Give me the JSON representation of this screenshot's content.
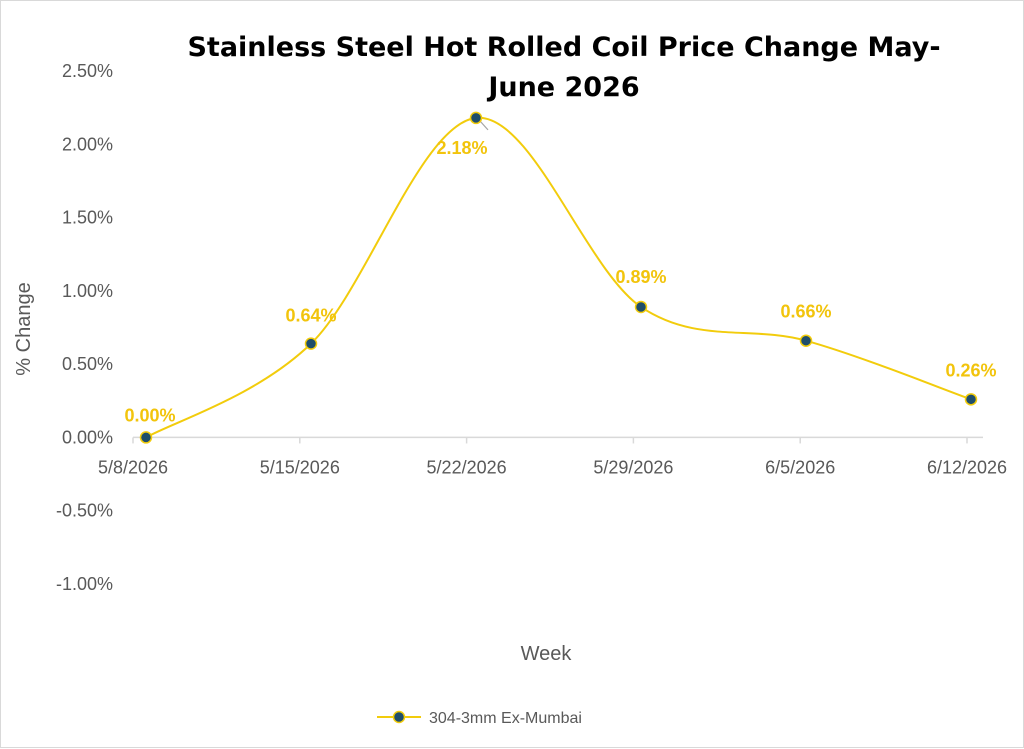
{
  "chart_data": {
    "type": "line",
    "title": "Stainless Steel Hot Rolled Coil Price Change May-June 2026",
    "title_lines": [
      "Stainless Steel Hot Rolled Coil Price Change May-",
      "June 2026"
    ],
    "xlabel": "Week",
    "ylabel": "% Change",
    "categories": [
      "5/8/2026",
      "5/15/2026",
      "5/22/2026",
      "5/29/2026",
      "6/5/2026",
      "6/12/2026"
    ],
    "series": [
      {
        "name": "304-3mm Ex-Mumbai",
        "values": [
          0.0,
          0.64,
          2.18,
          0.89,
          0.66,
          0.26
        ],
        "data_labels": [
          "0.00%",
          "0.64%",
          "2.18%",
          "0.89%",
          "0.66%",
          "0.26%"
        ],
        "line_color": "#f2cc0c",
        "marker_color": "#1f4e6b",
        "label_color": "#f2c40c",
        "smooth": true
      }
    ],
    "ylim": [
      -1.0,
      2.5
    ],
    "yticks": [
      2.5,
      2.0,
      1.5,
      1.0,
      0.5,
      0.0,
      -0.5,
      -1.0
    ],
    "ytick_labels": [
      "2.50%",
      "2.00%",
      "1.50%",
      "1.00%",
      "0.50%",
      "0.00%",
      "-0.50%",
      "-1.00%"
    ],
    "grid": false,
    "legend": "bottom",
    "colors": {
      "axis": "#d9d9d9",
      "text": "#595959",
      "title": "#000000"
    }
  }
}
